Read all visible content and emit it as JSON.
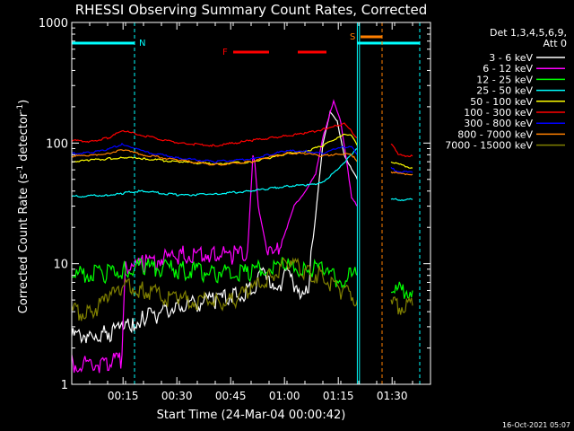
{
  "chart_data": {
    "type": "line",
    "title": "RHESSI Observing Summary Count Rates, Corrected",
    "xlabel": "Start Time (24-Mar-04 00:00:42)",
    "ylabel_main": "Corrected Count Rate (s",
    "ylabel_exp1": "-1",
    "ylabel_mid": " detector",
    "ylabel_exp2": "-1",
    "ylabel_end": ")",
    "yscale": "log",
    "ylim": [
      1,
      1000
    ],
    "xlim_minutes": [
      0,
      100
    ],
    "x_ticks": [
      {
        "label": "00:15",
        "min": 14.3
      },
      {
        "label": "00:30",
        "min": 29.3
      },
      {
        "label": "00:45",
        "min": 44.3
      },
      {
        "label": "01:00",
        "min": 59.3
      },
      {
        "label": "01:15",
        "min": 74.3
      },
      {
        "label": "01:30",
        "min": 89.3
      }
    ],
    "y_ticks": [
      {
        "label": "1",
        "v": 1
      },
      {
        "label": "10",
        "v": 10
      },
      {
        "label": "100",
        "v": 100
      },
      {
        "label": "1000",
        "v": 1000
      }
    ],
    "legend": {
      "header1": "Det 1,3,4,5,6,9,",
      "header2": "Att 0",
      "placement": "right"
    },
    "annotations": {
      "night": "N",
      "flare": "F",
      "saa": "S",
      "date": "16-Oct-2021 05:07"
    },
    "series": [
      {
        "name": "3 - 6 keV",
        "color": "#ffffff",
        "x": [
          0,
          5,
          10,
          14,
          17,
          20,
          25,
          30,
          40,
          45,
          50,
          53,
          55,
          58,
          60,
          64,
          66,
          68,
          70,
          72,
          74,
          76,
          78,
          79.6
        ],
        "values": [
          2.5,
          2.6,
          2.7,
          2.8,
          3.2,
          3.5,
          4,
          4.5,
          5,
          5.5,
          6,
          8,
          7,
          7,
          8,
          6,
          7,
          25,
          100,
          180,
          150,
          80,
          60,
          50
        ]
      },
      {
        "name": "6 - 12 keV",
        "color": "#ff00ff",
        "x": [
          0,
          10,
          14,
          15,
          20,
          30,
          40,
          45,
          49,
          50.5,
          51,
          52,
          54,
          56,
          58,
          60,
          62,
          65,
          68,
          70,
          72,
          73,
          75,
          77,
          78,
          79.6
        ],
        "values": [
          1.5,
          1.5,
          1.6,
          10,
          10,
          12,
          12,
          12,
          12,
          80,
          70,
          30,
          15,
          12,
          14,
          20,
          30,
          40,
          55,
          110,
          180,
          220,
          150,
          60,
          35,
          30
        ]
      },
      {
        "name": "12 - 25 keV",
        "color": "#00ff00",
        "x": [
          0,
          10,
          15,
          20,
          30,
          40,
          50,
          52,
          55,
          60,
          65,
          70,
          72,
          75,
          78,
          79.6,
          89,
          95
        ],
        "values": [
          8,
          8.5,
          9,
          9.5,
          9,
          8.5,
          8.5,
          9,
          10,
          9.5,
          9,
          9,
          8,
          7.5,
          8,
          8,
          6,
          6
        ]
      },
      {
        "name": "25 - 50 keV",
        "color": "#00ffff",
        "x": [
          0,
          10,
          14,
          15,
          20,
          30,
          40,
          50,
          55,
          60,
          65,
          68,
          70,
          72,
          73,
          75,
          78,
          79.6,
          89,
          95
        ],
        "values": [
          36,
          37,
          38,
          39,
          40,
          37,
          38,
          40,
          42,
          44,
          45,
          45,
          48,
          53,
          56,
          65,
          80,
          90,
          34,
          34
        ]
      },
      {
        "name": "50 - 100 keV",
        "color": "#ffff00",
        "x": [
          0,
          5,
          10,
          14,
          17,
          20,
          30,
          40,
          50,
          55,
          60,
          65,
          70,
          74,
          76,
          78,
          79.6,
          89,
          90,
          95
        ],
        "values": [
          70,
          72,
          74,
          76,
          75,
          74,
          70,
          67,
          70,
          75,
          82,
          85,
          95,
          110,
          120,
          115,
          95,
          70,
          68,
          62
        ]
      },
      {
        "name": "100 - 300 keV",
        "color": "#ff0000",
        "x": [
          0,
          5,
          10,
          14,
          17,
          20,
          30,
          40,
          50,
          55,
          60,
          65,
          70,
          74,
          76,
          78,
          79.6,
          89,
          91,
          95
        ],
        "values": [
          105,
          103,
          110,
          125,
          122,
          115,
          100,
          95,
          105,
          110,
          115,
          120,
          130,
          140,
          145,
          125,
          110,
          100,
          80,
          78
        ]
      },
      {
        "name": "300 - 800 keV",
        "color": "#0000ff",
        "x": [
          0,
          5,
          10,
          14,
          17,
          20,
          30,
          40,
          50,
          55,
          60,
          65,
          70,
          74,
          78,
          79.6,
          89,
          91,
          95
        ],
        "values": [
          82,
          83,
          88,
          98,
          92,
          85,
          75,
          70,
          74,
          80,
          86,
          86,
          82,
          90,
          95,
          80,
          62,
          58,
          57
        ]
      },
      {
        "name": "800 - 7000 keV",
        "color": "#ff8000",
        "x": [
          0,
          5,
          10,
          14,
          17,
          20,
          30,
          40,
          50,
          55,
          60,
          65,
          70,
          74,
          78,
          79.6,
          89,
          91,
          95
        ],
        "values": [
          78,
          79,
          82,
          88,
          84,
          80,
          72,
          66,
          70,
          76,
          82,
          82,
          78,
          82,
          80,
          70,
          58,
          56,
          55
        ]
      },
      {
        "name": "7000 - 15000 keV",
        "color": "#808000",
        "x": [
          0,
          5,
          10,
          15,
          20,
          30,
          40,
          45,
          50,
          55,
          60,
          65,
          70,
          75,
          79.6,
          89,
          95
        ],
        "values": [
          4,
          4,
          5,
          7,
          6,
          5,
          5,
          5,
          6,
          8,
          10,
          9,
          8,
          6,
          5,
          4.5,
          4.5
        ]
      }
    ],
    "night_spans": [
      [
        0,
        17.5
      ],
      [
        79.6,
        97
      ]
    ],
    "flare_spans": [
      [
        45,
        55
      ],
      [
        63,
        71
      ]
    ],
    "saa_span": [
      80.5,
      86.5
    ],
    "vlines_cyan": [
      17.5,
      79.6,
      80.2,
      97
    ],
    "vline_orange": 86.5,
    "data_gap": [
      80.4,
      89
    ]
  }
}
